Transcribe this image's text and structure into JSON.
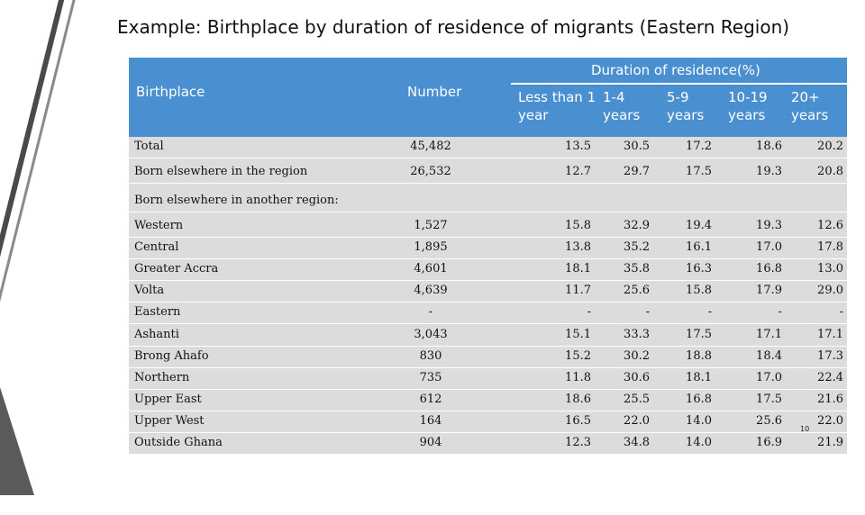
{
  "slide": {
    "title": "Example: Birthplace by duration of residence of migrants (Eastern Region)",
    "page_number": "10"
  },
  "table": {
    "headers": {
      "birthplace": "Birthplace",
      "number": "Number",
      "duration": "Duration of residence(%)",
      "cols": [
        "Less than 1 year",
        "1-4 years",
        "5-9 years",
        "10-19 years",
        "20+ years"
      ]
    },
    "rows": [
      {
        "name": "Total",
        "number": "45,482",
        "v": [
          "13.5",
          "30.5",
          "17.2",
          "18.6",
          "20.2"
        ]
      },
      {
        "name": "Born elsewhere in the region",
        "number": "26,532",
        "v": [
          "12.7",
          "29.7",
          "17.5",
          "19.3",
          "20.8"
        ]
      },
      {
        "name": "Born elsewhere in another region:",
        "number": "",
        "v": [
          "",
          "",
          "",
          "",
          ""
        ]
      },
      {
        "name": "Western",
        "number": "1,527",
        "v": [
          "15.8",
          "32.9",
          "19.4",
          "19.3",
          "12.6"
        ]
      },
      {
        "name": "Central",
        "number": "1,895",
        "v": [
          "13.8",
          "35.2",
          "16.1",
          "17.0",
          "17.8"
        ]
      },
      {
        "name": "Greater Accra",
        "number": "4,601",
        "v": [
          "18.1",
          "35.8",
          "16.3",
          "16.8",
          "13.0"
        ]
      },
      {
        "name": "Volta",
        "number": "4,639",
        "v": [
          "11.7",
          "25.6",
          "15.8",
          "17.9",
          "29.0"
        ]
      },
      {
        "name": "Eastern",
        "number": "-",
        "v": [
          "-",
          "-",
          "-",
          "-",
          "-"
        ]
      },
      {
        "name": "Ashanti",
        "number": "3,043",
        "v": [
          "15.1",
          "33.3",
          "17.5",
          "17.1",
          "17.1"
        ]
      },
      {
        "name": "Brong Ahafo",
        "number": "830",
        "v": [
          "15.2",
          "30.2",
          "18.8",
          "18.4",
          "17.3"
        ]
      },
      {
        "name": "Northern",
        "number": "735",
        "v": [
          "11.8",
          "30.6",
          "18.1",
          "17.0",
          "22.4"
        ]
      },
      {
        "name": "Upper East",
        "number": "612",
        "v": [
          "18.6",
          "25.5",
          "16.8",
          "17.5",
          "21.6"
        ]
      },
      {
        "name": "Upper West",
        "number": "164",
        "v": [
          "16.5",
          "22.0",
          "14.0",
          "25.6",
          "22.0"
        ]
      },
      {
        "name": "Outside Ghana",
        "number": "904",
        "v": [
          "12.3",
          "34.8",
          "14.0",
          "16.9",
          "21.9"
        ]
      }
    ]
  },
  "colors": {
    "header_bg": "#4a8fd0",
    "cell_bg": "#dcdcdc"
  }
}
